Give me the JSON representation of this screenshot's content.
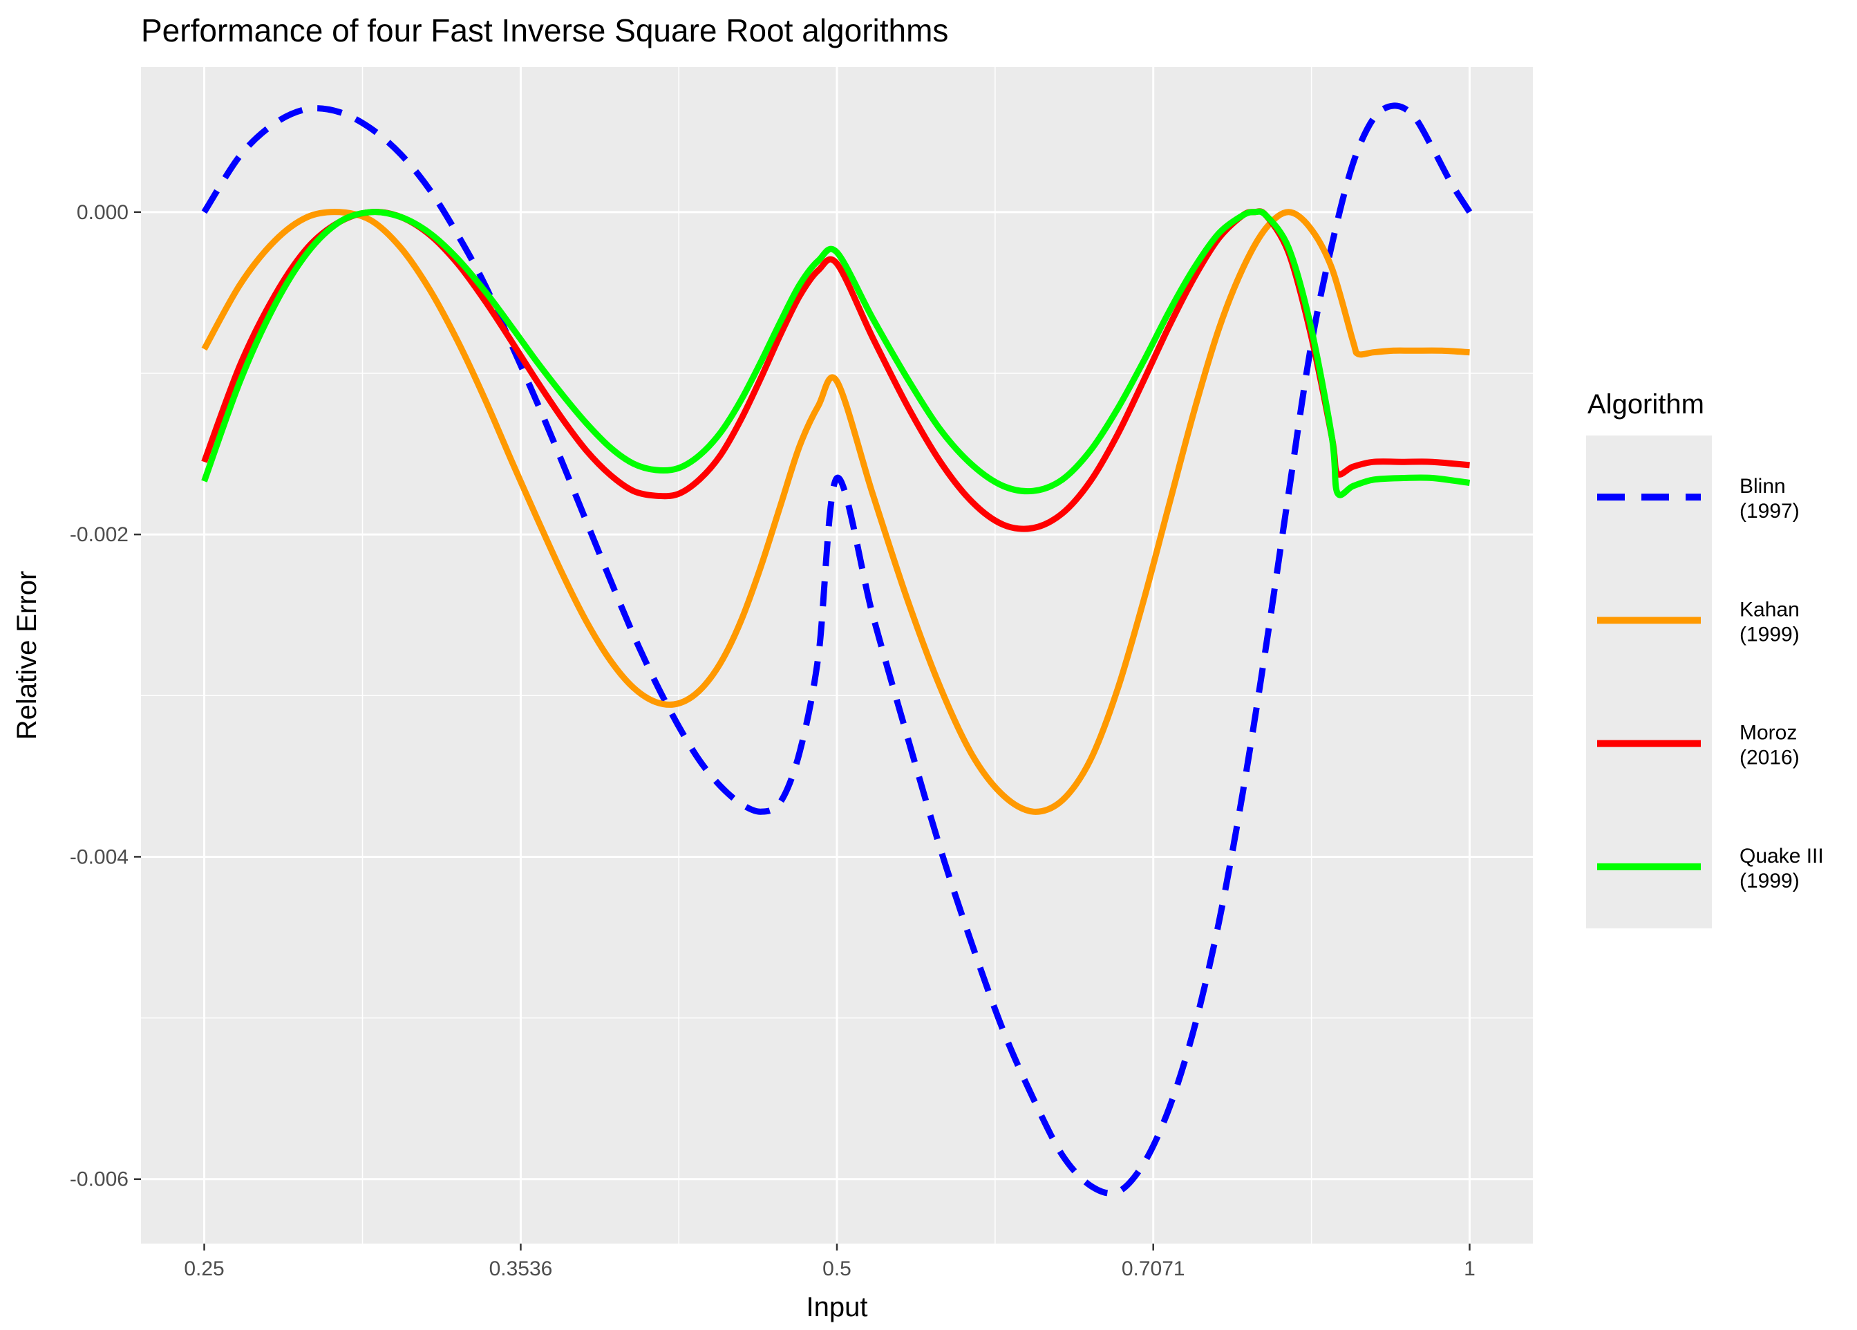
{
  "chart_data": {
    "type": "line",
    "title": "Performance of four Fast Inverse Square Root algorithms",
    "xlabel": "Input",
    "ylabel": "Relative Error",
    "x_scale": "log2",
    "xlim": [
      0.25,
      1
    ],
    "ylim": [
      -0.0064,
      0.0009
    ],
    "x_ticks": [
      {
        "value": 0.25,
        "label": "0.25"
      },
      {
        "value": 0.3536,
        "label": "0.3536"
      },
      {
        "value": 0.5,
        "label": "0.5"
      },
      {
        "value": 0.7071,
        "label": "0.7071"
      },
      {
        "value": 1,
        "label": "1"
      }
    ],
    "y_ticks": [
      {
        "value": 0.0,
        "label": "0.000"
      },
      {
        "value": -0.002,
        "label": "-0.002"
      },
      {
        "value": -0.004,
        "label": "-0.004"
      },
      {
        "value": -0.006,
        "label": "-0.006"
      }
    ],
    "grid": true,
    "legend": {
      "title": "Algorithm",
      "position": "right"
    },
    "series": [
      {
        "name": "Blinn (1997)",
        "label_lines": [
          "Blinn",
          "(1997)"
        ],
        "color": "#0000FF",
        "dash": "dashed",
        "points": [
          [
            0.25,
            0.0
          ],
          [
            0.26,
            0.00035
          ],
          [
            0.27,
            0.00055
          ],
          [
            0.28,
            0.00064
          ],
          [
            0.29,
            0.00062
          ],
          [
            0.3,
            0.00052
          ],
          [
            0.31,
            0.00036
          ],
          [
            0.32,
            0.00014
          ],
          [
            0.33,
            -0.00014
          ],
          [
            0.34,
            -0.00045
          ],
          [
            0.35,
            -0.00082
          ],
          [
            0.36,
            -0.00118
          ],
          [
            0.37,
            -0.00155
          ],
          [
            0.38,
            -0.00192
          ],
          [
            0.39,
            -0.00228
          ],
          [
            0.4,
            -0.00262
          ],
          [
            0.41,
            -0.00292
          ],
          [
            0.42,
            -0.00318
          ],
          [
            0.43,
            -0.0034
          ],
          [
            0.44,
            -0.00356
          ],
          [
            0.45,
            -0.00367
          ],
          [
            0.46,
            -0.00372
          ],
          [
            0.47,
            -0.00366
          ],
          [
            0.48,
            -0.00335
          ],
          [
            0.49,
            -0.00275
          ],
          [
            0.5,
            -0.00165
          ],
          [
            0.52,
            -0.0025
          ],
          [
            0.54,
            -0.00325
          ],
          [
            0.56,
            -0.00395
          ],
          [
            0.58,
            -0.00455
          ],
          [
            0.6,
            -0.00508
          ],
          [
            0.62,
            -0.0055
          ],
          [
            0.64,
            -0.00585
          ],
          [
            0.66,
            -0.00604
          ],
          [
            0.68,
            -0.00608
          ],
          [
            0.7,
            -0.0059
          ],
          [
            0.72,
            -0.00555
          ],
          [
            0.74,
            -0.00505
          ],
          [
            0.76,
            -0.0044
          ],
          [
            0.78,
            -0.0036
          ],
          [
            0.8,
            -0.0027
          ],
          [
            0.82,
            -0.00175
          ],
          [
            0.84,
            -0.00085
          ],
          [
            0.86,
            -0.0002
          ],
          [
            0.88,
            0.0003
          ],
          [
            0.9,
            0.00058
          ],
          [
            0.92,
            0.00066
          ],
          [
            0.94,
            0.0006
          ],
          [
            0.96,
            0.0004
          ],
          [
            0.98,
            0.00018
          ],
          [
            1.0,
            0.0
          ]
        ]
      },
      {
        "name": "Kahan (1999)",
        "label_lines": [
          "Kahan",
          "(1999)"
        ],
        "color": "#FF9900",
        "dash": "solid",
        "points": [
          [
            0.25,
            -0.00085
          ],
          [
            0.26,
            -0.00045
          ],
          [
            0.27,
            -0.00018
          ],
          [
            0.28,
            -3e-05
          ],
          [
            0.29,
            0.0
          ],
          [
            0.3,
            -5e-05
          ],
          [
            0.31,
            -0.00022
          ],
          [
            0.32,
            -0.00048
          ],
          [
            0.33,
            -0.0008
          ],
          [
            0.34,
            -0.00116
          ],
          [
            0.35,
            -0.00154
          ],
          [
            0.36,
            -0.0019
          ],
          [
            0.37,
            -0.00224
          ],
          [
            0.38,
            -0.00254
          ],
          [
            0.39,
            -0.00278
          ],
          [
            0.4,
            -0.00295
          ],
          [
            0.41,
            -0.00304
          ],
          [
            0.42,
            -0.00305
          ],
          [
            0.43,
            -0.00297
          ],
          [
            0.44,
            -0.0028
          ],
          [
            0.45,
            -0.00254
          ],
          [
            0.46,
            -0.0022
          ],
          [
            0.47,
            -0.00182
          ],
          [
            0.48,
            -0.00145
          ],
          [
            0.49,
            -0.0012
          ],
          [
            0.5,
            -0.00105
          ],
          [
            0.52,
            -0.00175
          ],
          [
            0.54,
            -0.0024
          ],
          [
            0.56,
            -0.00295
          ],
          [
            0.58,
            -0.00337
          ],
          [
            0.6,
            -0.00362
          ],
          [
            0.62,
            -0.00372
          ],
          [
            0.64,
            -0.00365
          ],
          [
            0.66,
            -0.0034
          ],
          [
            0.68,
            -0.00296
          ],
          [
            0.7,
            -0.0024
          ],
          [
            0.72,
            -0.0018
          ],
          [
            0.74,
            -0.00122
          ],
          [
            0.76,
            -0.00072
          ],
          [
            0.78,
            -0.00035
          ],
          [
            0.8,
            -0.0001
          ],
          [
            0.82,
            0.0
          ],
          [
            0.84,
            -0.0001
          ],
          [
            0.86,
            -0.00035
          ],
          [
            0.88,
            -0.0008
          ],
          [
            0.885,
            -0.00088
          ],
          [
            0.9,
            -0.00087
          ],
          [
            0.92,
            -0.00086
          ],
          [
            0.94,
            -0.00086
          ],
          [
            0.97,
            -0.00086
          ],
          [
            1.0,
            -0.00087
          ]
        ]
      },
      {
        "name": "Moroz (2016)",
        "label_lines": [
          "Moroz",
          "(2016)"
        ],
        "color": "#FF0000",
        "dash": "solid",
        "points": [
          [
            0.25,
            -0.00155
          ],
          [
            0.26,
            -0.00095
          ],
          [
            0.27,
            -0.00052
          ],
          [
            0.28,
            -0.00022
          ],
          [
            0.29,
            -6e-05
          ],
          [
            0.3,
            0.0
          ],
          [
            0.31,
            -3e-05
          ],
          [
            0.32,
            -0.00014
          ],
          [
            0.33,
            -0.00032
          ],
          [
            0.34,
            -0.00055
          ],
          [
            0.35,
            -0.0008
          ],
          [
            0.36,
            -0.00105
          ],
          [
            0.37,
            -0.00128
          ],
          [
            0.38,
            -0.00148
          ],
          [
            0.39,
            -0.00163
          ],
          [
            0.4,
            -0.00173
          ],
          [
            0.41,
            -0.00176
          ],
          [
            0.42,
            -0.00175
          ],
          [
            0.43,
            -0.00166
          ],
          [
            0.44,
            -0.00151
          ],
          [
            0.45,
            -0.00129
          ],
          [
            0.46,
            -0.00103
          ],
          [
            0.47,
            -0.00076
          ],
          [
            0.48,
            -0.00052
          ],
          [
            0.49,
            -0.00036
          ],
          [
            0.5,
            -0.00032
          ],
          [
            0.52,
            -0.00078
          ],
          [
            0.54,
            -0.0012
          ],
          [
            0.56,
            -0.00155
          ],
          [
            0.58,
            -0.0018
          ],
          [
            0.6,
            -0.00194
          ],
          [
            0.62,
            -0.00196
          ],
          [
            0.64,
            -0.00187
          ],
          [
            0.66,
            -0.00167
          ],
          [
            0.68,
            -0.00138
          ],
          [
            0.7,
            -0.00104
          ],
          [
            0.72,
            -0.0007
          ],
          [
            0.74,
            -0.0004
          ],
          [
            0.76,
            -0.00016
          ],
          [
            0.78,
            -2e-05
          ],
          [
            0.79,
            0.0
          ],
          [
            0.8,
            -2e-05
          ],
          [
            0.82,
            -0.00025
          ],
          [
            0.84,
            -0.00075
          ],
          [
            0.86,
            -0.0014
          ],
          [
            0.865,
            -0.00162
          ],
          [
            0.88,
            -0.00158
          ],
          [
            0.9,
            -0.00155
          ],
          [
            0.93,
            -0.00155
          ],
          [
            0.96,
            -0.00155
          ],
          [
            1.0,
            -0.00157
          ]
        ]
      },
      {
        "name": "Quake III (1999)",
        "label_lines": [
          "Quake III",
          "(1999)"
        ],
        "color": "#00FF00",
        "dash": "solid",
        "points": [
          [
            0.25,
            -0.00167
          ],
          [
            0.26,
            -0.00105
          ],
          [
            0.27,
            -0.00058
          ],
          [
            0.28,
            -0.00025
          ],
          [
            0.29,
            -6e-05
          ],
          [
            0.3,
            0.0
          ],
          [
            0.31,
            -3e-05
          ],
          [
            0.32,
            -0.00013
          ],
          [
            0.33,
            -0.00029
          ],
          [
            0.34,
            -0.00049
          ],
          [
            0.35,
            -0.00071
          ],
          [
            0.36,
            -0.00093
          ],
          [
            0.37,
            -0.00113
          ],
          [
            0.38,
            -0.00131
          ],
          [
            0.39,
            -0.00146
          ],
          [
            0.4,
            -0.00156
          ],
          [
            0.41,
            -0.0016
          ],
          [
            0.42,
            -0.00159
          ],
          [
            0.43,
            -0.00151
          ],
          [
            0.44,
            -0.00137
          ],
          [
            0.45,
            -0.00117
          ],
          [
            0.46,
            -0.00093
          ],
          [
            0.47,
            -0.00068
          ],
          [
            0.48,
            -0.00045
          ],
          [
            0.49,
            -0.0003
          ],
          [
            0.5,
            -0.00025
          ],
          [
            0.52,
            -0.00066
          ],
          [
            0.54,
            -0.00103
          ],
          [
            0.56,
            -0.00135
          ],
          [
            0.58,
            -0.00157
          ],
          [
            0.6,
            -0.0017
          ],
          [
            0.62,
            -0.00173
          ],
          [
            0.64,
            -0.00166
          ],
          [
            0.66,
            -0.00148
          ],
          [
            0.68,
            -0.00122
          ],
          [
            0.7,
            -0.00092
          ],
          [
            0.72,
            -0.00061
          ],
          [
            0.74,
            -0.00034
          ],
          [
            0.76,
            -0.00013
          ],
          [
            0.78,
            -2e-05
          ],
          [
            0.79,
            0.0
          ],
          [
            0.8,
            -2e-05
          ],
          [
            0.82,
            -0.00022
          ],
          [
            0.84,
            -0.0007
          ],
          [
            0.86,
            -0.0014
          ],
          [
            0.865,
            -0.00174
          ],
          [
            0.88,
            -0.0017
          ],
          [
            0.9,
            -0.00166
          ],
          [
            0.93,
            -0.00165
          ],
          [
            0.96,
            -0.00165
          ],
          [
            1.0,
            -0.00168
          ]
        ]
      }
    ]
  }
}
